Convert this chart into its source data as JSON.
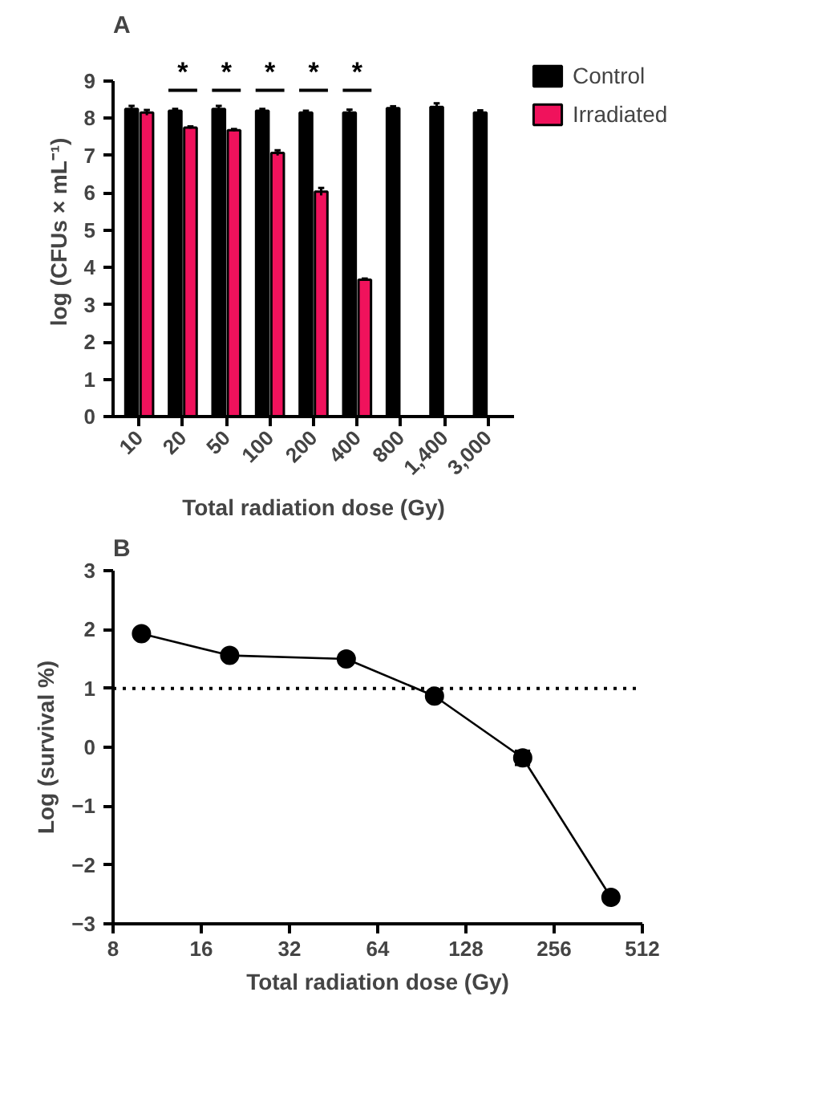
{
  "chart_data": [
    {
      "type": "bar",
      "title": "A",
      "xlabel": "Total radiation dose (Gy)",
      "ylabel": "log (CFUs × mL⁻¹)",
      "categories": [
        "10",
        "20",
        "50",
        "100",
        "200",
        "400",
        "800",
        "1,400",
        "3,000"
      ],
      "series": [
        {
          "name": "Control",
          "color": "#000000",
          "values": [
            8.25,
            8.2,
            8.25,
            8.2,
            8.15,
            8.15,
            8.27,
            8.3,
            8.15
          ],
          "errors": [
            0.08,
            0.05,
            0.08,
            0.05,
            0.05,
            0.08,
            0.05,
            0.1,
            0.06
          ]
        },
        {
          "name": "Irradiated",
          "color": "#f0125c",
          "values": [
            8.15,
            7.75,
            7.68,
            7.07,
            6.03,
            3.67,
            null,
            null,
            null
          ],
          "errors": [
            0.07,
            0.03,
            0.03,
            0.07,
            0.1,
            0.03,
            null,
            null,
            null
          ]
        }
      ],
      "ylim": [
        0,
        9
      ],
      "yticks": [
        0,
        1,
        2,
        3,
        4,
        5,
        6,
        7,
        8,
        9
      ],
      "grid": false,
      "legend": "right",
      "annotations": [
        "*",
        "*",
        "*",
        "*",
        "*"
      ]
    },
    {
      "type": "line",
      "title": "B",
      "xlabel": "Total radiation dose (Gy)",
      "ylabel": "Log (survival %)",
      "series": [
        {
          "color": "#000000",
          "x": [
            10,
            20,
            50,
            100,
            200,
            400
          ],
          "values": [
            1.93,
            1.56,
            1.5,
            0.87,
            -0.18,
            -2.55
          ],
          "errors": [
            null,
            null,
            null,
            null,
            0.12,
            null
          ]
        }
      ],
      "log": "x",
      "xlim": [
        8,
        512
      ],
      "xticks": [
        8,
        16,
        32,
        64,
        128,
        256,
        512
      ],
      "ylim": [
        -3,
        3
      ],
      "yticks": [
        -3,
        -2,
        -1,
        0,
        1,
        2,
        3
      ],
      "marker": "circle",
      "line_style": "solid",
      "grid": false,
      "legend": false,
      "ref_lines": [
        {
          "axis": "y",
          "value": 1,
          "line_style": "dotted",
          "color": "#000000"
        }
      ]
    }
  ]
}
